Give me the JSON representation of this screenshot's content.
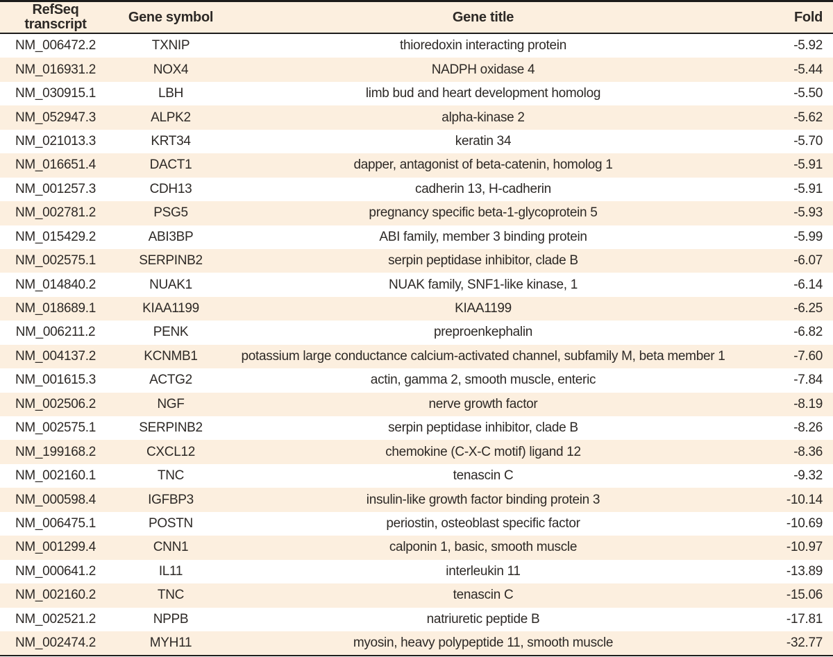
{
  "table": {
    "headers": {
      "transcript": "RefSeq\ntranscript",
      "symbol": "Gene symbol",
      "title": "Gene title",
      "fold": "Fold"
    },
    "rows": [
      {
        "transcript": "NM_006472.2",
        "symbol": "TXNIP",
        "title": "thioredoxin interacting protein",
        "fold": "-5.92"
      },
      {
        "transcript": "NM_016931.2",
        "symbol": "NOX4",
        "title": "NADPH oxidase 4",
        "fold": "-5.44"
      },
      {
        "transcript": "NM_030915.1",
        "symbol": "LBH",
        "title": "limb bud and heart development homolog",
        "fold": "-5.50"
      },
      {
        "transcript": "NM_052947.3",
        "symbol": "ALPK2",
        "title": "alpha-kinase 2",
        "fold": "-5.62"
      },
      {
        "transcript": "NM_021013.3",
        "symbol": "KRT34",
        "title": "keratin 34",
        "fold": "-5.70"
      },
      {
        "transcript": "NM_016651.4",
        "symbol": "DACT1",
        "title": "dapper, antagonist of beta-catenin, homolog 1",
        "fold": "-5.91"
      },
      {
        "transcript": "NM_001257.3",
        "symbol": "CDH13",
        "title": "cadherin 13, H-cadherin",
        "fold": "-5.91"
      },
      {
        "transcript": "NM_002781.2",
        "symbol": "PSG5",
        "title": "pregnancy specific beta-1-glycoprotein 5",
        "fold": "-5.93"
      },
      {
        "transcript": "NM_015429.2",
        "symbol": "ABI3BP",
        "title": "ABI family, member 3 binding protein",
        "fold": "-5.99"
      },
      {
        "transcript": "NM_002575.1",
        "symbol": "SERPINB2",
        "title": "serpin peptidase inhibitor, clade B",
        "fold": "-6.07"
      },
      {
        "transcript": "NM_014840.2",
        "symbol": "NUAK1",
        "title": "NUAK family, SNF1-like kinase, 1",
        "fold": "-6.14"
      },
      {
        "transcript": "NM_018689.1",
        "symbol": "KIAA1199",
        "title": "KIAA1199",
        "fold": "-6.25"
      },
      {
        "transcript": "NM_006211.2",
        "symbol": "PENK",
        "title": "preproenkephalin",
        "fold": "-6.82"
      },
      {
        "transcript": "NM_004137.2",
        "symbol": "KCNMB1",
        "title": "potassium large conductance calcium-activated channel, subfamily M, beta member 1",
        "fold": "-7.60"
      },
      {
        "transcript": "NM_001615.3",
        "symbol": "ACTG2",
        "title": "actin, gamma 2, smooth muscle, enteric",
        "fold": "-7.84"
      },
      {
        "transcript": "NM_002506.2",
        "symbol": "NGF",
        "title": "nerve growth factor",
        "fold": "-8.19"
      },
      {
        "transcript": "NM_002575.1",
        "symbol": "SERPINB2",
        "title": "serpin peptidase inhibitor, clade B",
        "fold": "-8.26"
      },
      {
        "transcript": "NM_199168.2",
        "symbol": "CXCL12",
        "title": "chemokine (C-X-C motif) ligand 12",
        "fold": "-8.36"
      },
      {
        "transcript": "NM_002160.1",
        "symbol": "TNC",
        "title": "tenascin C",
        "fold": "-9.32"
      },
      {
        "transcript": "NM_000598.4",
        "symbol": "IGFBP3",
        "title": "insulin-like growth factor binding protein 3",
        "fold": "-10.14"
      },
      {
        "transcript": "NM_006475.1",
        "symbol": "POSTN",
        "title": "periostin, osteoblast specific factor",
        "fold": "-10.69"
      },
      {
        "transcript": "NM_001299.4",
        "symbol": "CNN1",
        "title": "calponin 1, basic, smooth muscle",
        "fold": "-10.97"
      },
      {
        "transcript": "NM_000641.2",
        "symbol": "IL11",
        "title": "interleukin 11",
        "fold": "-13.89"
      },
      {
        "transcript": "NM_002160.2",
        "symbol": "TNC",
        "title": "tenascin C",
        "fold": "-15.06"
      },
      {
        "transcript": "NM_002521.2",
        "symbol": "NPPB",
        "title": "natriuretic peptide B",
        "fold": "-17.81"
      },
      {
        "transcript": "NM_002474.2",
        "symbol": "MYH11",
        "title": "myosin, heavy polypeptide 11, smooth muscle",
        "fold": "-32.77"
      }
    ],
    "colors": {
      "stripe_background": "#fcefdf",
      "text": "#2d2926",
      "border": "#1d1c1b"
    }
  }
}
